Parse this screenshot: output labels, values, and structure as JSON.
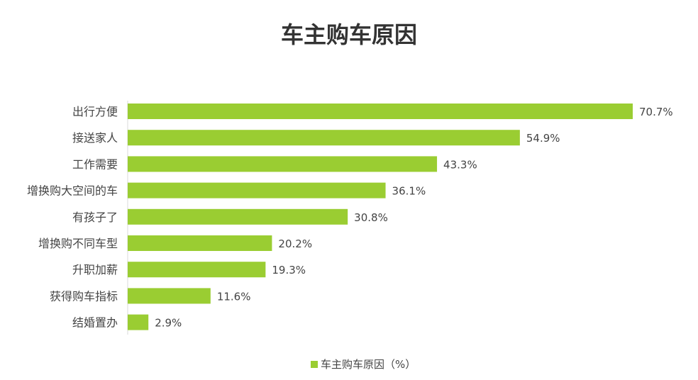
{
  "chart_data": {
    "type": "bar",
    "orientation": "horizontal",
    "title": "车主购车原因",
    "categories": [
      "出行方便",
      "接送家人",
      "工作需要",
      "增换购大空间的车",
      "有孩子了",
      "增换购不同车型",
      "升职加薪",
      "获得购车指标",
      "结婚置办"
    ],
    "series": [
      {
        "name": "车主购车原因（%）",
        "values": [
          70.7,
          54.9,
          43.3,
          36.1,
          30.8,
          20.2,
          19.3,
          11.6,
          2.9
        ]
      }
    ],
    "value_labels": [
      "70.7%",
      "54.9%",
      "43.3%",
      "36.1%",
      "30.8%",
      "20.2%",
      "19.3%",
      "11.6%",
      "2.9%"
    ],
    "xlim": [
      0,
      70.7
    ],
    "grid": false,
    "legend_position": "bottom",
    "colors": {
      "bar": "#9acd32",
      "title": "#333333",
      "label": "#444444",
      "axis": "#d9d9d9"
    }
  }
}
